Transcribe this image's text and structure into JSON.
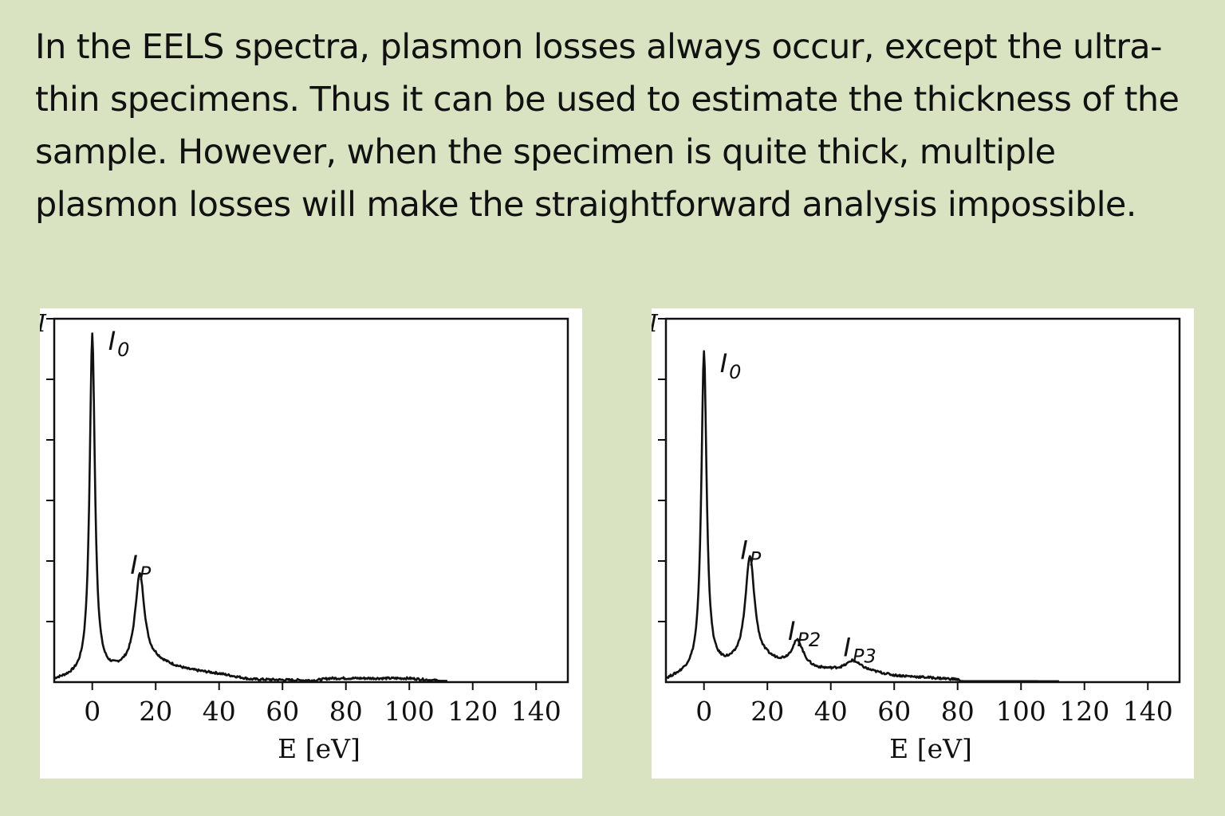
{
  "slide": {
    "text": "In the EELS spectra, plasmon losses always occur, except the ultra-thin specimens. Thus it can be used to estimate the thickness of the sample. However, when the specimen is quite thick, multiple plasmon losses will make the straightforward analysis impossible."
  },
  "chart_data": [
    {
      "type": "line",
      "title": "",
      "xlabel": "E [eV]",
      "ylabel": "I",
      "xlim": [
        -12,
        150
      ],
      "ylim": [
        0,
        1
      ],
      "x_ticks": [
        0,
        20,
        40,
        60,
        80,
        100,
        120,
        140
      ],
      "y_tick_count": 6,
      "grid": false,
      "legend": "none",
      "peaks": [
        {
          "label": "I",
          "sub": "0",
          "x": 0,
          "height": 0.93
        },
        {
          "label": "I",
          "sub": "P",
          "x": 15,
          "height": 0.25
        }
      ],
      "background": [
        {
          "x": -12,
          "y": 0.002
        },
        {
          "x": -5,
          "y": 0.01
        },
        {
          "x": 5,
          "y": 0.02
        },
        {
          "x": 20,
          "y": 0.05
        },
        {
          "x": 30,
          "y": 0.03
        },
        {
          "x": 40,
          "y": 0.02
        },
        {
          "x": 50,
          "y": 0.005
        },
        {
          "x": 70,
          "y": 0.002
        },
        {
          "x": 75,
          "y": 0.008
        },
        {
          "x": 100,
          "y": 0.008
        },
        {
          "x": 110,
          "y": 0.001
        },
        {
          "x": 150,
          "y": 0.0
        }
      ]
    },
    {
      "type": "line",
      "title": "",
      "xlabel": "E [eV]",
      "ylabel": "I",
      "xlim": [
        -12,
        150
      ],
      "ylim": [
        0,
        1
      ],
      "x_ticks": [
        0,
        20,
        40,
        60,
        80,
        100,
        120,
        140
      ],
      "y_tick_count": 6,
      "grid": false,
      "legend": "none",
      "peaks": [
        {
          "label": "I",
          "sub": "0",
          "x": 0,
          "height": 0.87
        },
        {
          "label": "I",
          "sub": "P",
          "x": 14.5,
          "height": 0.29
        },
        {
          "label": "I",
          "sub": "P2",
          "x": 29.5,
          "height": 0.07
        },
        {
          "label": "I",
          "sub": "P3",
          "x": 47,
          "height": 0.025
        }
      ],
      "background": [
        {
          "x": -12,
          "y": 0.002
        },
        {
          "x": -5,
          "y": 0.02
        },
        {
          "x": 5,
          "y": 0.035
        },
        {
          "x": 20,
          "y": 0.05
        },
        {
          "x": 35,
          "y": 0.03
        },
        {
          "x": 50,
          "y": 0.03
        },
        {
          "x": 60,
          "y": 0.015
        },
        {
          "x": 70,
          "y": 0.01
        },
        {
          "x": 80,
          "y": 0.005
        },
        {
          "x": 81,
          "y": 0.0
        },
        {
          "x": 150,
          "y": 0.0
        }
      ]
    }
  ]
}
